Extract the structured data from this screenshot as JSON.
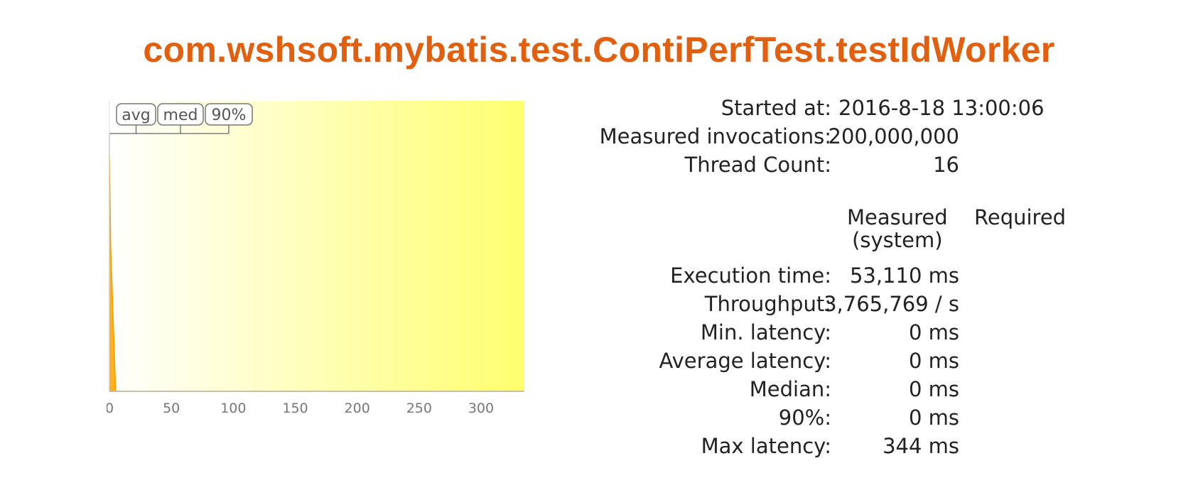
{
  "title": "com.wshsoft.mybatis.test.ContiPerfTest.testIdWorker",
  "stats": {
    "started_label": "Started at:",
    "started_value": "2016-8-18 13:00:06",
    "invocations_label": "Measured invocations:",
    "invocations_value": "200,000,000",
    "threads_label": "Thread Count:",
    "threads_value": "16",
    "col_measured_line1": "Measured",
    "col_measured_line2": "(system)",
    "col_required": "Required",
    "rows": [
      {
        "label": "Execution time:",
        "value": "53,110 ms"
      },
      {
        "label": "Throughput:",
        "value": "3,765,769 / s"
      },
      {
        "label": "Min. latency:",
        "value": "0 ms"
      },
      {
        "label": "Average latency:",
        "value": "0 ms"
      },
      {
        "label": "Median:",
        "value": "0 ms"
      },
      {
        "label": "90%:",
        "value": "0 ms"
      },
      {
        "label": "Max latency:",
        "value": "344 ms"
      }
    ]
  },
  "chart_data": {
    "type": "area",
    "title": "",
    "xlabel": "",
    "ylabel": "",
    "xlim": [
      0,
      335
    ],
    "ylim": [
      0,
      1
    ],
    "x_ticks": [
      "0",
      "50",
      "100",
      "150",
      "200",
      "250",
      "300"
    ],
    "x_tick_values": [
      0,
      50,
      100,
      150,
      200,
      250,
      300
    ],
    "markers": [
      {
        "label": "avg",
        "x": 0
      },
      {
        "label": "med",
        "x": 0
      },
      {
        "label": "90%",
        "x": 0
      }
    ],
    "series": [
      {
        "x": [
          0,
          1,
          5,
          335
        ],
        "values": [
          0.81,
          0.5,
          0,
          0
        ]
      }
    ],
    "colors": {
      "fill": "#ffb020",
      "line": "#f0a000",
      "bg_start": "#ffffff",
      "bg_end": "#ffff70"
    }
  }
}
